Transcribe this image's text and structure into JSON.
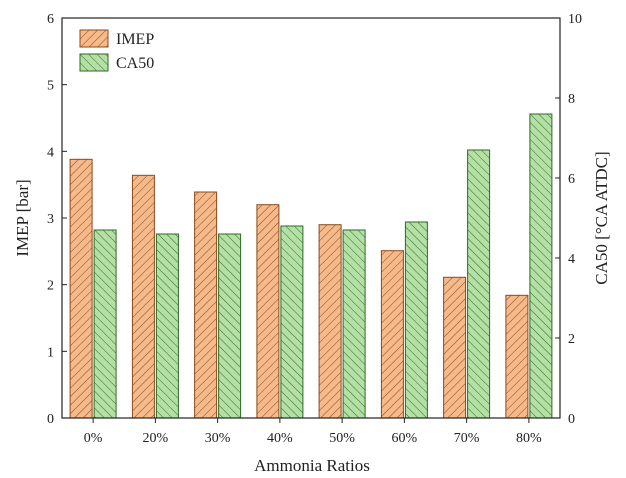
{
  "chart_data": {
    "type": "bar",
    "categories": [
      "0%",
      "20%",
      "30%",
      "40%",
      "50%",
      "60%",
      "70%",
      "80%"
    ],
    "series": [
      {
        "name": "IMEP",
        "axis": "left",
        "values": [
          3.88,
          3.64,
          3.39,
          3.2,
          2.9,
          2.51,
          2.11,
          1.84
        ],
        "color": "#f5b98a",
        "stroke": "#8a4a1e",
        "pattern": "diagonal-hatch"
      },
      {
        "name": "CA50",
        "axis": "right",
        "values": [
          4.7,
          4.6,
          4.6,
          4.8,
          4.7,
          4.9,
          6.7,
          7.6
        ],
        "color": "#b4e0a6",
        "stroke": "#2f6a24",
        "pattern": "diagonal-hatch"
      }
    ],
    "xlabel": "Ammonia Ratios",
    "ylabel": "IMEP [bar]",
    "y2label": "CA50 [°CA ATDC]",
    "ylim": [
      0,
      6
    ],
    "y2lim": [
      0,
      10
    ],
    "yticks": [
      "0",
      "1",
      "2",
      "3",
      "4",
      "5",
      "6"
    ],
    "y2ticks": [
      "0",
      "2",
      "4",
      "6",
      "8",
      "10"
    ],
    "legend_position": "top-left",
    "grid": false
  }
}
